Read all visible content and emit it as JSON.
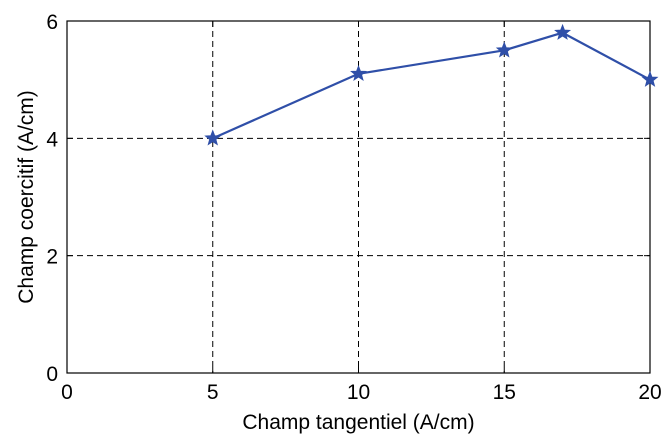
{
  "chart_data": {
    "type": "line",
    "xlabel": "Champ tangentiel (A/cm)",
    "ylabel": "Champ coercitif (A/cm)",
    "xlim": [
      0,
      20
    ],
    "ylim": [
      0,
      6
    ],
    "x_ticks": [
      0,
      5,
      10,
      15,
      20
    ],
    "y_ticks": [
      0,
      2,
      4,
      6
    ],
    "grid": true,
    "series": [
      {
        "marker": "star",
        "color": "#2f4fa8",
        "points": [
          {
            "x": 5,
            "y": 4.0
          },
          {
            "x": 10,
            "y": 5.1
          },
          {
            "x": 15,
            "y": 5.5
          },
          {
            "x": 17,
            "y": 5.8
          },
          {
            "x": 20,
            "y": 5.0
          }
        ]
      }
    ]
  }
}
